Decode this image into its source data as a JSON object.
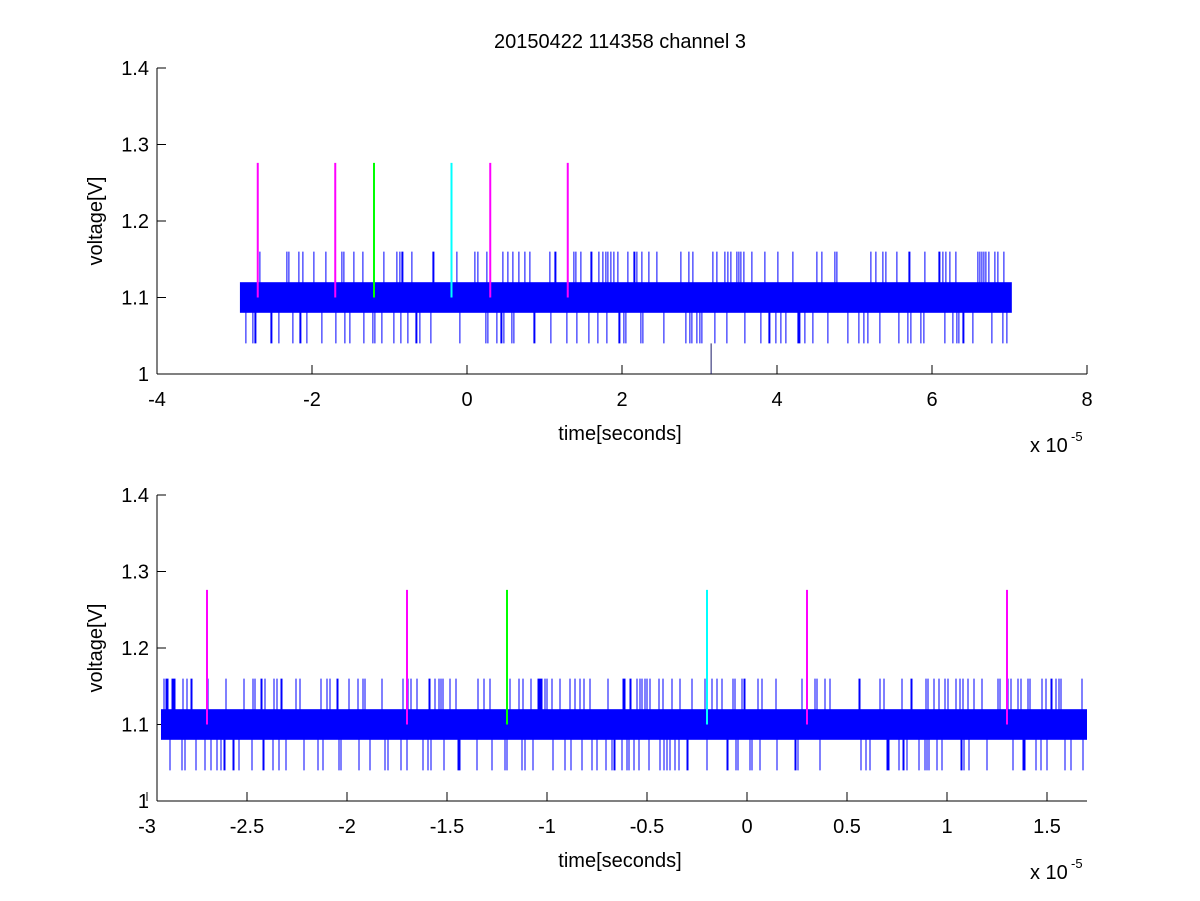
{
  "figure_title": "20150422 114358 channel 3",
  "chart_data": [
    {
      "type": "line",
      "title": "20150422 114358 channel 3",
      "xlabel": "time[seconds]",
      "ylabel": "voltage[V]",
      "x_exponent_label": "x 10",
      "x_exponent_power": "-5",
      "x_scale": 1e-05,
      "xlim": [
        -4,
        8
      ],
      "ylim": [
        1,
        1.4
      ],
      "xticks": [
        -4,
        -2,
        0,
        2,
        4,
        6,
        8
      ],
      "xtick_labels": [
        "-4",
        "-2",
        "0",
        "2",
        "4",
        "6",
        "8"
      ],
      "yticks": [
        1,
        1.1,
        1.2,
        1.3,
        1.4
      ],
      "ytick_labels": [
        "1",
        "1.1",
        "1.2",
        "1.3",
        "1.4"
      ],
      "grid": false,
      "signal": {
        "color": "#0000ff",
        "x_range": [
          -2.93,
          7.03
        ],
        "band": [
          1.08,
          1.12
        ],
        "spike_high": 1.16,
        "spike_low": 1.04,
        "outlier": {
          "x": 3.15,
          "y": 1.0
        }
      },
      "markers": [
        {
          "x": -2.7,
          "y0": 1.1,
          "y1": 1.276,
          "color": "#ff00ff"
        },
        {
          "x": -1.7,
          "y0": 1.1,
          "y1": 1.276,
          "color": "#ff00ff"
        },
        {
          "x": -1.2,
          "y0": 1.1,
          "y1": 1.276,
          "color": "#00ff00"
        },
        {
          "x": -0.2,
          "y0": 1.1,
          "y1": 1.276,
          "color": "#00ffff"
        },
        {
          "x": 0.3,
          "y0": 1.1,
          "y1": 1.276,
          "color": "#ff00ff"
        },
        {
          "x": 1.3,
          "y0": 1.1,
          "y1": 1.276,
          "color": "#ff00ff"
        }
      ]
    },
    {
      "type": "line",
      "title": "",
      "xlabel": "time[seconds]",
      "ylabel": "voltage[V]",
      "x_exponent_label": "x 10",
      "x_exponent_power": "-5",
      "x_scale": 1e-05,
      "xlim": [
        -2.95,
        1.7
      ],
      "ylim": [
        1,
        1.4
      ],
      "xticks": [
        -3,
        -2.5,
        -2,
        -1.5,
        -1,
        -0.5,
        0,
        0.5,
        1,
        1.5
      ],
      "xtick_labels": [
        "-3",
        "-2.5",
        "-2",
        "-1.5",
        "-1",
        "-0.5",
        "0",
        "0.5",
        "1",
        "1.5"
      ],
      "yticks": [
        1,
        1.1,
        1.2,
        1.3,
        1.4
      ],
      "ytick_labels": [
        "1",
        "1.1",
        "1.2",
        "1.3",
        "1.4"
      ],
      "grid": false,
      "signal": {
        "color": "#0000ff",
        "x_range": [
          -2.93,
          1.7
        ],
        "band": [
          1.08,
          1.12
        ],
        "spike_high": 1.16,
        "spike_low": 1.04
      },
      "markers": [
        {
          "x": -2.7,
          "y0": 1.1,
          "y1": 1.276,
          "color": "#ff00ff"
        },
        {
          "x": -1.7,
          "y0": 1.1,
          "y1": 1.276,
          "color": "#ff00ff"
        },
        {
          "x": -1.2,
          "y0": 1.1,
          "y1": 1.276,
          "color": "#00ff00"
        },
        {
          "x": -0.2,
          "y0": 1.1,
          "y1": 1.276,
          "color": "#00ffff"
        },
        {
          "x": 0.3,
          "y0": 1.1,
          "y1": 1.276,
          "color": "#ff00ff"
        },
        {
          "x": 1.3,
          "y0": 1.1,
          "y1": 1.276,
          "color": "#ff00ff"
        }
      ]
    }
  ]
}
